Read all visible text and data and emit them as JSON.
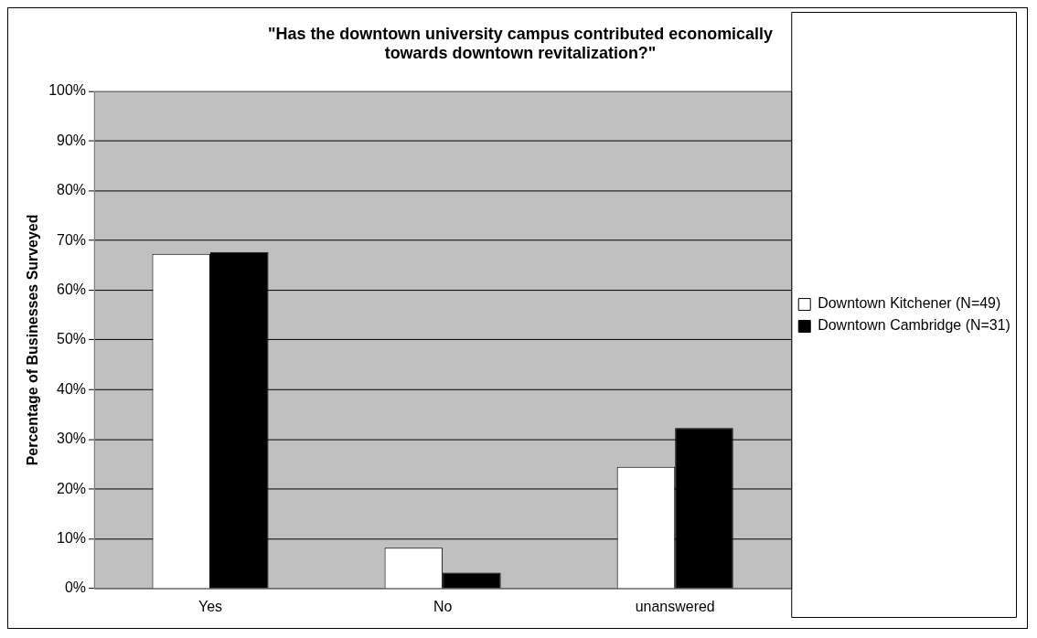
{
  "chart_data": {
    "type": "bar",
    "title": "\"Has the downtown university campus contributed economically\ntowards downtown revitalization?\"",
    "ylabel": "Percentage of Businesses Surveyed",
    "categories": [
      "Yes",
      "No",
      "unanswered"
    ],
    "series": [
      {
        "name": "Downtown Kitchener (N=49)",
        "color": "#ffffff",
        "values": [
          67.3,
          8.2,
          24.5
        ]
      },
      {
        "name": "Downtown Cambridge (N=31)",
        "color": "#000000",
        "values": [
          67.7,
          3.2,
          32.3
        ]
      }
    ],
    "ylim": [
      0,
      100
    ],
    "yticks": [
      {
        "value": 0,
        "label": "0%"
      },
      {
        "value": 10,
        "label": "10%"
      },
      {
        "value": 20,
        "label": "20%"
      },
      {
        "value": 30,
        "label": "30%"
      },
      {
        "value": 40,
        "label": "40%"
      },
      {
        "value": 50,
        "label": "50%"
      },
      {
        "value": 60,
        "label": "60%"
      },
      {
        "value": 70,
        "label": "70%"
      },
      {
        "value": 80,
        "label": "80%"
      },
      {
        "value": 90,
        "label": "90%"
      },
      {
        "value": 100,
        "label": "100%"
      }
    ],
    "grid": "y",
    "legend": "right"
  }
}
